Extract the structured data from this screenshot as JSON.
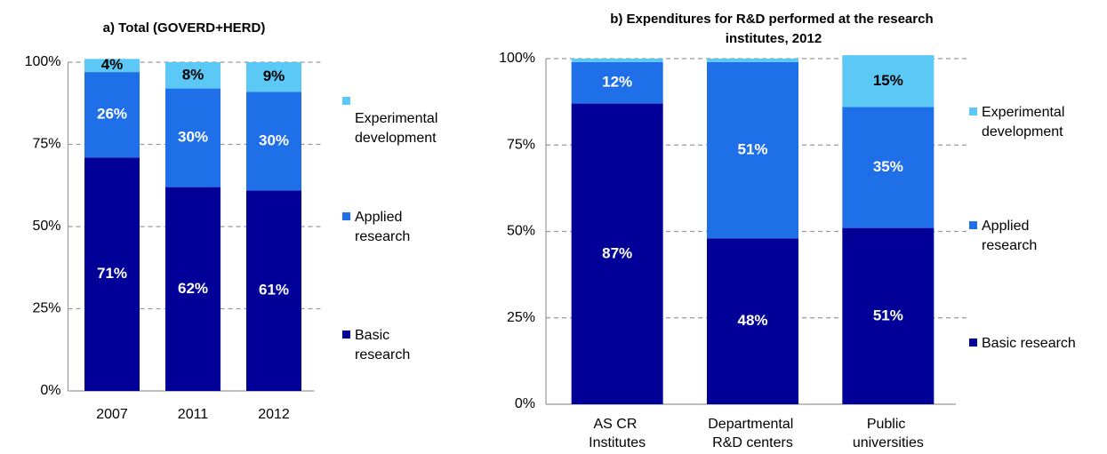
{
  "chart_data": [
    {
      "type": "bar",
      "stacked": true,
      "title": "a) Total (GOVERD+HERD)",
      "categories": [
        "2007",
        "2011",
        "2012"
      ],
      "series": [
        {
          "name": "Basic research",
          "color": "#000099",
          "values": [
            71,
            62,
            61
          ],
          "value_labels": [
            "71%",
            "62%",
            "61%"
          ]
        },
        {
          "name": "Applied research",
          "color": "#1f6fe8",
          "values": [
            26,
            30,
            30
          ],
          "value_labels": [
            "26%",
            "30%",
            "30%"
          ]
        },
        {
          "name": "Experimental development",
          "color": "#5bc8f5",
          "values": [
            4,
            8,
            9
          ],
          "value_labels": [
            "4%",
            "8%",
            "9%"
          ]
        }
      ],
      "ylim": [
        0,
        100
      ],
      "yticks": [
        {
          "value": 0,
          "label": "0%"
        },
        {
          "value": 25,
          "label": "25%"
        },
        {
          "value": 50,
          "label": "50%"
        },
        {
          "value": 75,
          "label": "75%"
        },
        {
          "value": 100,
          "label": "100%"
        }
      ],
      "grid": true,
      "legend": "right"
    },
    {
      "type": "bar",
      "stacked": true,
      "title": "b) Expenditures for R&D performed at the research institutes, 2012",
      "categories": [
        "AS CR Institutes",
        "Departmental R&D centers",
        "Public universities"
      ],
      "series": [
        {
          "name": "Basic research",
          "color": "#000099",
          "values": [
            87,
            48,
            51
          ],
          "value_labels": [
            "87%",
            "48%",
            "51%"
          ]
        },
        {
          "name": "Applied research",
          "color": "#1f6fe8",
          "values": [
            12,
            51,
            35
          ],
          "value_labels": [
            "12%",
            "51%",
            "35%"
          ]
        },
        {
          "name": "Experimental development",
          "color": "#5bc8f5",
          "values": [
            1,
            1,
            15
          ],
          "value_labels": [
            null,
            null,
            "15%"
          ]
        }
      ],
      "ylim": [
        0,
        100
      ],
      "yticks": [
        {
          "value": 0,
          "label": "0%"
        },
        {
          "value": 25,
          "label": "25%"
        },
        {
          "value": 50,
          "label": "50%"
        },
        {
          "value": 75,
          "label": "75%"
        },
        {
          "value": 100,
          "label": "100%"
        }
      ],
      "grid": true,
      "legend": "right"
    }
  ]
}
